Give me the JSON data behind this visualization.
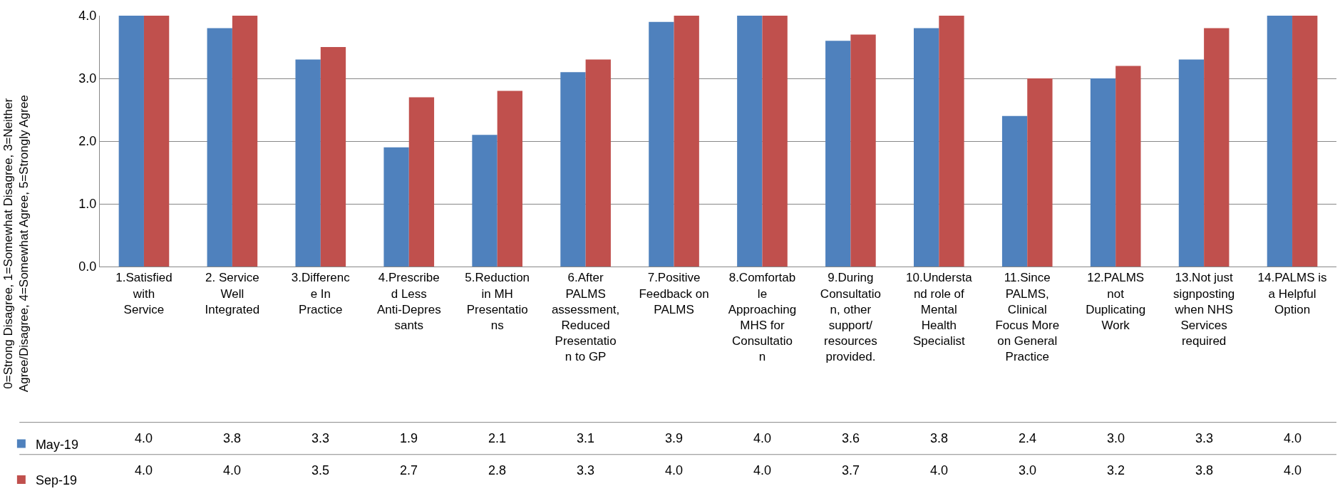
{
  "chart_data": {
    "type": "bar",
    "ylabel": "0=Strong Disagree, 1=Somewhat Disagree, 3=Neither Agree/Disagree, 4=Somewhat Agree, 5=Strongly Agree",
    "categories": [
      "1.Satisfied with Service",
      "2. Service Well Integrated",
      "3.Difference In Practice",
      "4.Prescribed Less Anti-Depressants",
      "5.Reduction in MH Presentations",
      "6.After PALMS assessment, Reduced Presentation to GP",
      "7.Positive Feedback on PALMS",
      "8.Comfortable Approaching MHS for Consultation",
      "9.During Consultation, other support/ resources provided.",
      "10.Understand role of Mental Health Specialist",
      "11.Since PALMS, Clinical Focus More on General Practice",
      "12.PALMS not Duplicating Work",
      "13.Not just signposting when NHS Services required",
      "14.PALMS is a Helpful Option"
    ],
    "series": [
      {
        "name": "May-19",
        "color": "#4f81bd",
        "values": [
          4.0,
          3.8,
          3.3,
          1.9,
          2.1,
          3.1,
          3.9,
          4.0,
          3.6,
          3.8,
          2.4,
          3.0,
          3.3,
          4.0
        ],
        "value_labels": [
          "4.0",
          "3.8",
          "3.3",
          "1.9",
          "2.1",
          "3.1",
          "3.9",
          "4.0",
          "3.6",
          "3.8",
          "2.4",
          "3.0",
          "3.3",
          "4.0"
        ]
      },
      {
        "name": "Sep-19",
        "color": "#c0504d",
        "values": [
          4.0,
          4.0,
          3.5,
          2.7,
          2.8,
          3.3,
          4.0,
          4.0,
          3.7,
          4.0,
          3.0,
          3.2,
          3.8,
          4.0
        ],
        "value_labels": [
          "4.0",
          "4.0",
          "3.5",
          "2.7",
          "2.8",
          "3.3",
          "4.0",
          "4.0",
          "3.7",
          "4.0",
          "3.0",
          "3.2",
          "3.8",
          "4.0"
        ]
      }
    ],
    "ylim": [
      0,
      4
    ],
    "yticks": [
      {
        "value": 0,
        "label": "0.0"
      },
      {
        "value": 1,
        "label": "1.0"
      },
      {
        "value": 2,
        "label": "2.0"
      },
      {
        "value": 3,
        "label": "3.0"
      },
      {
        "value": 4,
        "label": "4.0"
      }
    ],
    "grid": "y",
    "legend": "bottom left"
  }
}
